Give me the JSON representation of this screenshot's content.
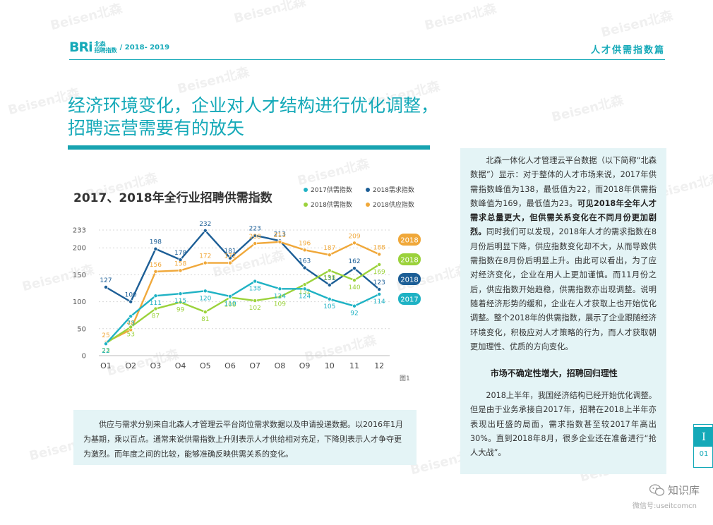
{
  "header": {
    "logo_mark": "BRi",
    "logo_line1": "北森",
    "logo_line2": "招聘指数",
    "logo_year": "/ 2018- 2019",
    "section": "人才供需指数篇"
  },
  "title": {
    "line1": "经济环境变化，企业对人才结构进行优化调整，",
    "line2": "招聘运营需要有的放矢"
  },
  "chart_title": "2017、2018年全行业招聘供需指数",
  "legend": [
    {
      "label": "2017供需指数",
      "color": "#1fb2c4"
    },
    {
      "label": "2018需求指数",
      "color": "#1c5e96"
    },
    {
      "label": "2018供需指数",
      "color": "#9bd23b"
    },
    {
      "label": "2018供应指数",
      "color": "#f0a83a"
    }
  ],
  "chart_data": {
    "type": "line",
    "categories": [
      "O1",
      "O2",
      "O3",
      "O4",
      "O5",
      "O6",
      "O7",
      "O8",
      "O9",
      "10",
      "11",
      "12"
    ],
    "y_ticks": [
      0,
      50,
      100,
      150,
      200,
      233
    ],
    "ylim": [
      0,
      233
    ],
    "series": [
      {
        "name": "2018需求指数",
        "color": "#1c5e96",
        "values": [
          127,
          100,
          198,
          178,
          232,
          181,
          223,
          213,
          163,
          131,
          162,
          123
        ],
        "tag": "2018"
      },
      {
        "name": "2018供应指数",
        "color": "#f0a83a",
        "values": [
          25,
          48,
          156,
          158,
          172,
          172,
          208,
          211,
          196,
          187,
          209,
          188
        ],
        "tag": "2018"
      },
      {
        "name": "2018供需指数",
        "color": "#9bd23b",
        "values": [
          23,
          53,
          87,
          99,
          81,
          108,
          102,
          109,
          132,
          158,
          140,
          169
        ],
        "tag": "2018"
      },
      {
        "name": "2017供需指数",
        "color": "#1fb2c4",
        "values": [
          22,
          73,
          111,
          115,
          120,
          110,
          138,
          124,
          124,
          105,
          92,
          114
        ],
        "tag": "2017"
      }
    ]
  },
  "fig_note": "图1",
  "note_box": "供应与需求分别来自北森人才管理云平台岗位需求数据以及申请投递数据。以2016年1月为基期，乘以百点。通常来说供需指数上升则表示人才供给相对充足，下降则表示人才争夺更为激烈。而年度之间的比较，能够准确反映供需关系的变化。",
  "panel": {
    "p1_a": "北森一体化人才管理云平台数据（以下简称“北森数据”）显示：对于整体的人才市场来说，2017年供需指数峰值为138，最低值为22，而2018年供需指数峰值为169，最低值为23。",
    "p1_b": "可见2018年全年人才需求总量更大，但供需关系变化在不同月份更加剧烈。",
    "p1_c": "同时我们可以发现，2018年人才的需求指数在8月份后明显下降，供应指数变化却不大，从而导致供需指数在8月份后明显上升。由此可以看出，为了应对经济变化，企业在用人上更加谨慎。而11月份之后，供应指数开始趋稳，供需指数亦出现调整。说明随着经济形势的缓和，企业在人才获取上也开始优化调整。整个2018年的供需指数，展示了企业跟随经济环境变化，积极应对人才策略的行为，而人才获取朝更加理性、优质的方向变化。",
    "heading": "市场不确定性增大，招聘回归理性",
    "p2": "2018上半年，我国经济结构已经开始优化调整。但是由于业务承接自2017年，招聘在2018上半年亦表现出旺盛的局面，需求指数甚至较2017年高出30%。直到2018年8月，很多企业还在准备进行“抢人大战”。"
  },
  "page": {
    "roman": "I",
    "number": "01"
  },
  "wechat": {
    "name": "知识库",
    "sub": "微信号:useitcomcn"
  },
  "watermark": "Beisen北森"
}
